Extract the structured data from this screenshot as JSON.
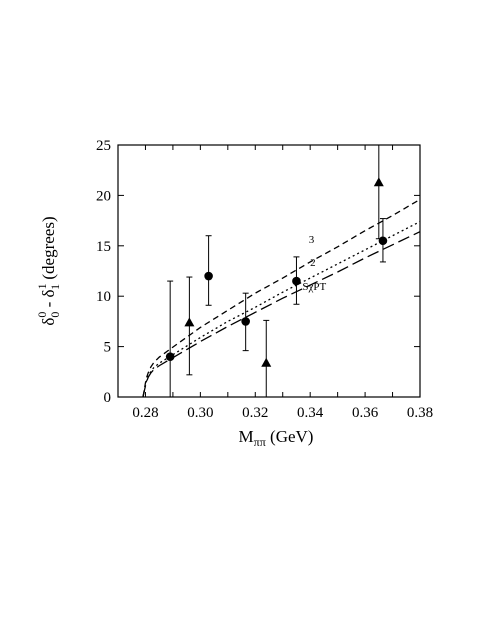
{
  "chart_data": {
    "type": "scatter",
    "xlim": [
      0.27,
      0.38
    ],
    "ylim": [
      0,
      25
    ],
    "grid": false,
    "legend": "none",
    "x_ticks": [
      0.28,
      0.29,
      0.3,
      0.31,
      0.32,
      0.33,
      0.34,
      0.35,
      0.36,
      0.37,
      0.38
    ],
    "x_tick_labels": [
      "0.28",
      "0.30",
      "0.32",
      "0.34",
      "0.36",
      "0.38"
    ],
    "y_ticks": [
      0,
      5,
      10,
      15,
      20,
      25
    ],
    "y_tick_labels": [
      "0",
      "5",
      "10",
      "15",
      "20",
      "25"
    ],
    "xlabel": {
      "main": "M",
      "sub": "ππ",
      "rest": " (GeV)"
    },
    "ylabel": {
      "d1": "δ",
      "d1_sup": "0",
      "d1_sub": "0",
      "mid": " - ",
      "d2": "δ",
      "d2_sup": "1",
      "d2_sub": "1",
      "rest": " (degrees)"
    },
    "curves": [
      {
        "label": "3",
        "dash": "6,4",
        "x": [
          0.2791,
          0.2795,
          0.28,
          0.2805,
          0.281,
          0.282,
          0.283,
          0.285,
          0.29,
          0.3,
          0.31,
          0.32,
          0.33,
          0.34,
          0.35,
          0.36,
          0.37,
          0.38
        ],
        "y": [
          0,
          0.6,
          1.4,
          2.0,
          2.4,
          3.0,
          3.4,
          3.95,
          4.95,
          6.9,
          8.6,
          10.3,
          11.8,
          13.4,
          14.9,
          16.5,
          18.0,
          19.6
        ]
      },
      {
        "label": "2",
        "dash": "2,3",
        "x": [
          0.2791,
          0.2795,
          0.28,
          0.2805,
          0.281,
          0.282,
          0.283,
          0.285,
          0.29,
          0.3,
          0.31,
          0.32,
          0.33,
          0.34,
          0.35,
          0.36,
          0.37,
          0.38
        ],
        "y": [
          0,
          0.5,
          1.2,
          1.7,
          2.05,
          2.55,
          2.9,
          3.35,
          4.2,
          5.9,
          7.5,
          8.9,
          10.4,
          11.8,
          13.2,
          14.6,
          16.0,
          17.4
        ]
      },
      {
        "label": "SχPT",
        "dash": "12,5",
        "x": [
          0.2791,
          0.2795,
          0.28,
          0.2805,
          0.281,
          0.282,
          0.283,
          0.285,
          0.29,
          0.3,
          0.31,
          0.32,
          0.33,
          0.34,
          0.35,
          0.36,
          0.37,
          0.38
        ],
        "y": [
          0,
          0.5,
          1.1,
          1.6,
          1.95,
          2.4,
          2.7,
          3.1,
          3.9,
          5.5,
          7.0,
          8.4,
          9.8,
          11.1,
          12.4,
          13.8,
          15.1,
          16.4
        ]
      }
    ],
    "series": [
      {
        "marker": "circle",
        "points": [
          {
            "x": 0.289,
            "y": 4.0,
            "ylo": 0.0,
            "yhi": 11.5
          },
          {
            "x": 0.303,
            "y": 12.0,
            "ylo": 9.1,
            "yhi": 16.0
          },
          {
            "x": 0.3165,
            "y": 7.5,
            "ylo": 4.6,
            "yhi": 10.3
          },
          {
            "x": 0.335,
            "y": 11.5,
            "ylo": 9.2,
            "yhi": 13.9
          },
          {
            "x": 0.3665,
            "y": 15.5,
            "ylo": 13.4,
            "yhi": 17.7
          }
        ]
      },
      {
        "marker": "triangle",
        "points": [
          {
            "x": 0.296,
            "y": 7.4,
            "ylo": 2.2,
            "yhi": 11.9
          },
          {
            "x": 0.324,
            "y": 3.4,
            "ylo": 0.0,
            "yhi": 7.6
          },
          {
            "x": 0.365,
            "y": 21.3,
            "ylo": 15.7,
            "yhi": 25.0
          }
        ]
      }
    ]
  }
}
